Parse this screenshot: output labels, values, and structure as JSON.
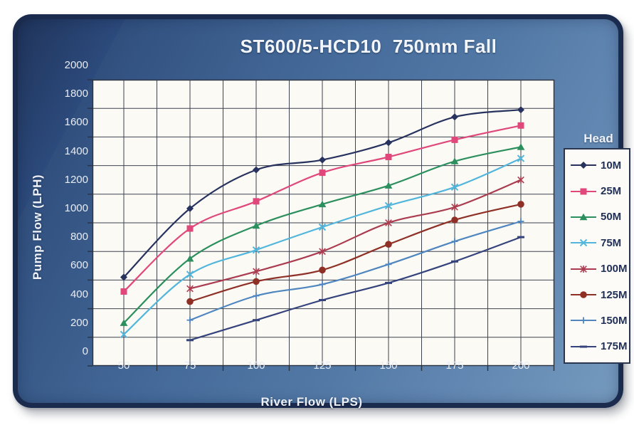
{
  "chart": {
    "title": "ST600/5-HCD10  750mm Fall",
    "legend_title": "Head"
  },
  "colors": {
    "card_border": "#1b2b4e",
    "card_panel": "#476d9d",
    "plot_background": "#fbfaf5",
    "grid": "#3e4350",
    "axis_text": "#e7edf6",
    "legend_text": "#1f2f55"
  },
  "chart_data": {
    "type": "line",
    "title": "ST600/5-HCD10  750mm Fall",
    "xlabel": "River Flow (LPS)",
    "ylabel": "Pump Flow (LPH)",
    "legend_title": "Head",
    "legend_position": "right",
    "grid": true,
    "smoothed_lines": true,
    "x": [
      50,
      75,
      100,
      125,
      150,
      175,
      200
    ],
    "xticks": [
      "50",
      "75",
      "100",
      "125",
      "150",
      "175",
      "200"
    ],
    "ylim": [
      0,
      2000
    ],
    "yticks": [
      0,
      200,
      400,
      600,
      800,
      1000,
      1200,
      1400,
      1600,
      1800,
      2000
    ],
    "series": [
      {
        "name": "10M",
        "color": "#27325e",
        "marker": "diamond",
        "values": [
          620,
          1100,
          1370,
          1440,
          1560,
          1740,
          1790
        ]
      },
      {
        "name": "25M",
        "color": "#e0487b",
        "marker": "square",
        "values": [
          520,
          960,
          1150,
          1350,
          1460,
          1580,
          1680
        ]
      },
      {
        "name": "50M",
        "color": "#2c8f5e",
        "marker": "triangle",
        "values": [
          300,
          750,
          980,
          1130,
          1260,
          1430,
          1530
        ]
      },
      {
        "name": "75M",
        "color": "#52b6dc",
        "marker": "x",
        "values": [
          220,
          640,
          810,
          970,
          1120,
          1250,
          1450
        ]
      },
      {
        "name": "100M",
        "color": "#ab3c50",
        "marker": "asterisk",
        "values": [
          null,
          540,
          660,
          800,
          1000,
          1110,
          1300
        ]
      },
      {
        "name": "125M",
        "color": "#8f3026",
        "marker": "circle",
        "values": [
          null,
          450,
          590,
          670,
          850,
          1020,
          1130
        ]
      },
      {
        "name": "150M",
        "color": "#4f86c0",
        "marker": "plus",
        "values": [
          null,
          320,
          490,
          570,
          710,
          870,
          1010
        ]
      },
      {
        "name": "175M",
        "color": "#35437c",
        "marker": "dash",
        "values": [
          null,
          180,
          320,
          460,
          580,
          730,
          900
        ]
      }
    ]
  }
}
